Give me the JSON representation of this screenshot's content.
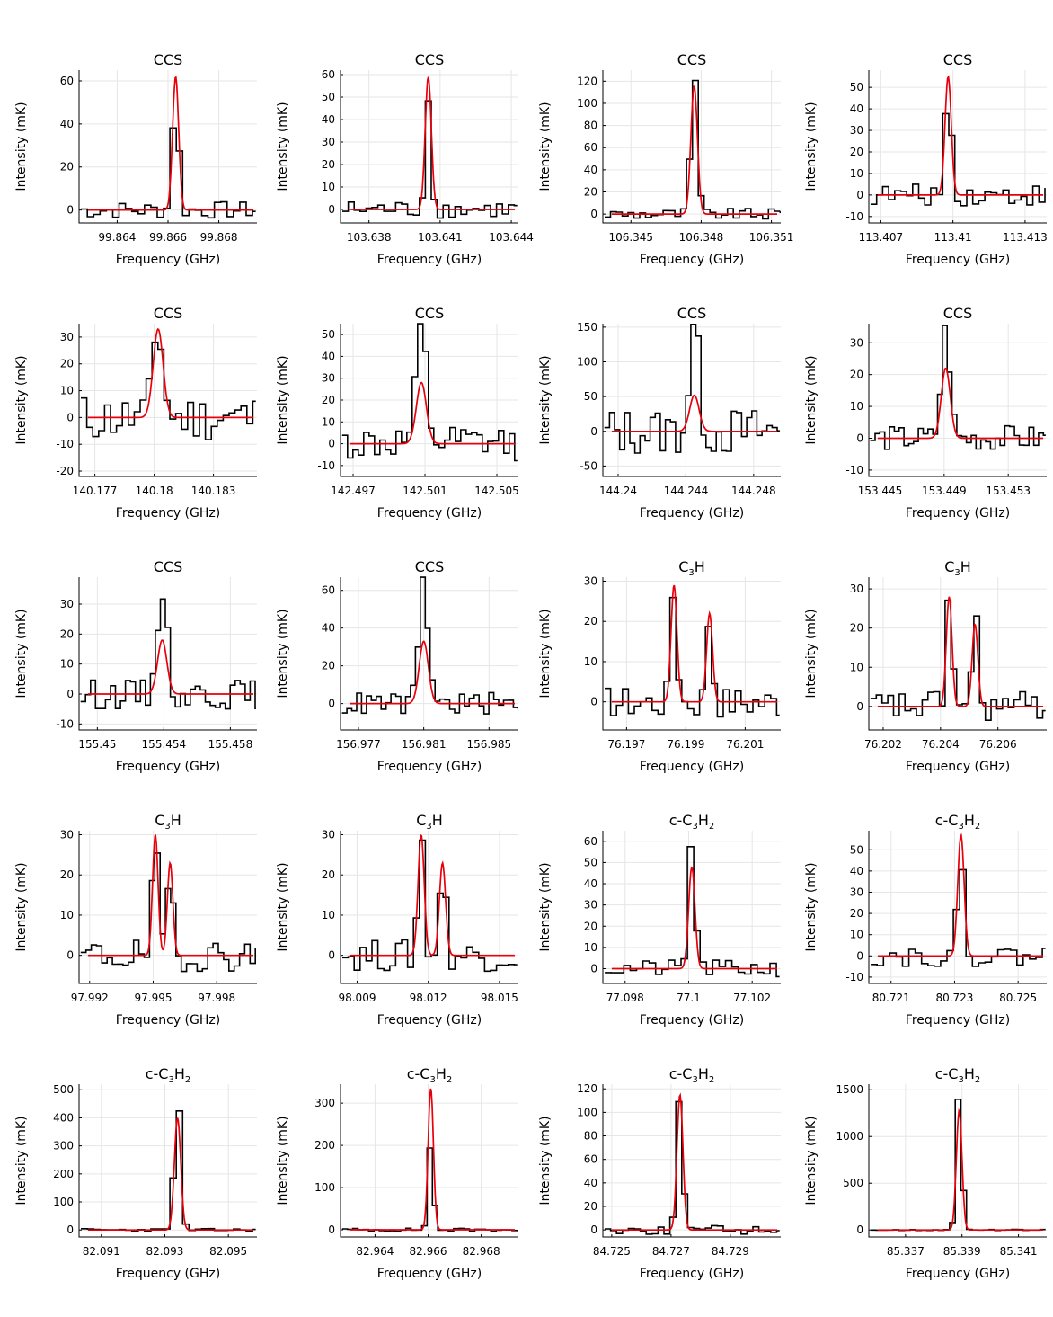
{
  "x_axis_label": "Frequency (GHz)",
  "y_axis_label": "Intensity (mK)",
  "colors": {
    "data": "#000000",
    "fit": "#e8000b",
    "grid": "#e6e6e6"
  },
  "chart_data": [
    {
      "type": "line",
      "title": "CCS",
      "title_sub": [],
      "xlim": [
        99.8625,
        99.8695
      ],
      "ylim": [
        -6,
        65
      ],
      "xticks": [
        99.864,
        99.866,
        99.868
      ],
      "yticks": [
        0,
        20,
        40,
        60
      ],
      "peaks": [
        {
          "center": 99.8663,
          "amp": 62,
          "sigma": 0.00012
        }
      ],
      "observed_peak": 57,
      "noise": 4,
      "channel_width": 0.00025
    },
    {
      "type": "line",
      "title": "CCS",
      "title_sub": [],
      "xlim": [
        103.6368,
        103.6443
      ],
      "ylim": [
        -6,
        62
      ],
      "xticks": [
        103.638,
        103.641,
        103.644
      ],
      "yticks": [
        0,
        10,
        20,
        30,
        40,
        50,
        60
      ],
      "peaks": [
        {
          "center": 103.6405,
          "amp": 59,
          "sigma": 0.00013
        }
      ],
      "observed_peak": 48,
      "noise": 4,
      "channel_width": 0.00025
    },
    {
      "type": "line",
      "title": "CCS",
      "title_sub": [],
      "xlim": [
        106.3438,
        106.3514
      ],
      "ylim": [
        -8,
        130
      ],
      "xticks": [
        106.345,
        106.348,
        106.351
      ],
      "yticks": [
        0,
        20,
        40,
        60,
        80,
        100,
        120
      ],
      "peaks": [
        {
          "center": 106.3477,
          "amp": 116,
          "sigma": 0.00014
        }
      ],
      "observed_peak": 128,
      "noise": 5,
      "channel_width": 0.00025
    },
    {
      "type": "line",
      "title": "CCS",
      "title_sub": [],
      "xlim": [
        113.4065,
        113.4139
      ],
      "ylim": [
        -13,
        58
      ],
      "xticks": [
        113.407,
        113.41,
        113.413
      ],
      "yticks": [
        -10,
        0,
        10,
        20,
        30,
        40,
        50
      ],
      "peaks": [
        {
          "center": 113.4098,
          "amp": 55,
          "sigma": 0.00013
        }
      ],
      "observed_peak": 52,
      "noise": 5,
      "channel_width": 0.00025
    },
    {
      "type": "line",
      "title": "CCS",
      "title_sub": [],
      "xlim": [
        140.1762,
        140.1852
      ],
      "ylim": [
        -22,
        35
      ],
      "xticks": [
        140.177,
        140.18,
        140.183
      ],
      "yticks": [
        -20,
        -10,
        0,
        10,
        20,
        30
      ],
      "peaks": [
        {
          "center": 140.1802,
          "amp": 33,
          "sigma": 0.00025
        }
      ],
      "observed_peak": 34,
      "noise": 9,
      "channel_width": 0.0003
    },
    {
      "type": "line",
      "title": "CCS",
      "title_sub": [],
      "xlim": [
        142.4963,
        142.5062
      ],
      "ylim": [
        -15,
        55
      ],
      "xticks": [
        142.497,
        142.501,
        142.505
      ],
      "yticks": [
        -10,
        0,
        10,
        20,
        30,
        40,
        50
      ],
      "peaks": [
        {
          "center": 142.5008,
          "amp": 28,
          "sigma": 0.00028
        }
      ],
      "observed_peak": 52,
      "noise": 8,
      "channel_width": 0.0003
    },
    {
      "type": "line",
      "title": "CCS",
      "title_sub": [],
      "xlim": [
        144.2391,
        144.2496
      ],
      "ylim": [
        -65,
        155
      ],
      "xticks": [
        144.24,
        144.244,
        144.248
      ],
      "yticks": [
        -50,
        0,
        50,
        100,
        150
      ],
      "peaks": [
        {
          "center": 144.2445,
          "amp": 52,
          "sigma": 0.00028
        }
      ],
      "observed_peak": 150,
      "noise": 35,
      "channel_width": 0.0003
    },
    {
      "type": "line",
      "title": "CCS",
      "title_sub": [],
      "xlim": [
        153.4443,
        153.4554
      ],
      "ylim": [
        -12,
        36
      ],
      "xticks": [
        153.445,
        153.449,
        153.453
      ],
      "yticks": [
        -10,
        0,
        10,
        20,
        30
      ],
      "peaks": [
        {
          "center": 153.4491,
          "amp": 22,
          "sigma": 0.00028
        }
      ],
      "observed_peak": 34,
      "noise": 4,
      "channel_width": 0.0003
    },
    {
      "type": "line",
      "title": "CCS",
      "title_sub": [],
      "xlim": [
        155.4489,
        155.4596
      ],
      "ylim": [
        -12,
        39
      ],
      "xticks": [
        155.45,
        155.454,
        155.458
      ],
      "yticks": [
        -10,
        0,
        10,
        20,
        30
      ],
      "peaks": [
        {
          "center": 155.4539,
          "amp": 18,
          "sigma": 0.00028
        }
      ],
      "observed_peak": 37,
      "noise": 5,
      "channel_width": 0.0003
    },
    {
      "type": "line",
      "title": "CCS",
      "title_sub": [],
      "xlim": [
        156.9759,
        156.9868
      ],
      "ylim": [
        -14,
        67
      ],
      "xticks": [
        156.977,
        156.981,
        156.985
      ],
      "yticks": [
        0,
        20,
        40,
        60
      ],
      "peaks": [
        {
          "center": 156.981,
          "amp": 33,
          "sigma": 0.00028
        }
      ],
      "observed_peak": 64,
      "noise": 6,
      "channel_width": 0.0003
    },
    {
      "type": "line",
      "title": "C",
      "title_sub": [
        "3",
        "H",
        ""
      ],
      "xlim": [
        76.1962,
        76.2022
      ],
      "ylim": [
        -7,
        31
      ],
      "xticks": [
        76.197,
        76.199,
        76.201
      ],
      "yticks": [
        0,
        10,
        20,
        30
      ],
      "peaks": [
        {
          "center": 76.1986,
          "amp": 29,
          "sigma": 0.0001
        },
        {
          "center": 76.1998,
          "amp": 22,
          "sigma": 0.0001
        }
      ],
      "observed_peak": 29,
      "noise": 4,
      "channel_width": 0.0002
    },
    {
      "type": "line",
      "title": "C",
      "title_sub": [
        "3",
        "H",
        ""
      ],
      "xlim": [
        76.2015,
        76.2077
      ],
      "ylim": [
        -6,
        33
      ],
      "xticks": [
        76.202,
        76.204,
        76.206
      ],
      "yticks": [
        0,
        10,
        20,
        30
      ],
      "peaks": [
        {
          "center": 76.2043,
          "amp": 28,
          "sigma": 0.0001
        },
        {
          "center": 76.2052,
          "amp": 21,
          "sigma": 0.0001
        }
      ],
      "observed_peak": 32,
      "noise": 4,
      "channel_width": 0.0002
    },
    {
      "type": "line",
      "title": "C",
      "title_sub": [
        "3",
        "H",
        ""
      ],
      "xlim": [
        97.9915,
        97.9999
      ],
      "ylim": [
        -7,
        31
      ],
      "xticks": [
        97.992,
        97.995,
        97.998
      ],
      "yticks": [
        0,
        10,
        20,
        30
      ],
      "peaks": [
        {
          "center": 97.9951,
          "amp": 30,
          "sigma": 0.00013
        },
        {
          "center": 97.9958,
          "amp": 23,
          "sigma": 0.00013
        }
      ],
      "observed_peak": 30,
      "noise": 4,
      "channel_width": 0.00025
    },
    {
      "type": "line",
      "title": "C",
      "title_sub": [
        "3",
        "H",
        ""
      ],
      "xlim": [
        98.0083,
        98.0158
      ],
      "ylim": [
        -7,
        31
      ],
      "xticks": [
        98.009,
        98.012,
        98.015
      ],
      "yticks": [
        0,
        10,
        20,
        30
      ],
      "peaks": [
        {
          "center": 98.0117,
          "amp": 30,
          "sigma": 0.00013
        },
        {
          "center": 98.0126,
          "amp": 23,
          "sigma": 0.00013
        }
      ],
      "observed_peak": 30,
      "noise": 4,
      "channel_width": 0.00025
    },
    {
      "type": "line",
      "title": "c-C",
      "title_sub": [
        "3",
        "H",
        "2"
      ],
      "xlim": [
        77.0973,
        77.1029
      ],
      "ylim": [
        -7,
        65
      ],
      "xticks": [
        77.098,
        77.1,
        77.102
      ],
      "yticks": [
        0,
        10,
        20,
        30,
        40,
        50,
        60
      ],
      "peaks": [
        {
          "center": 77.1001,
          "amp": 48,
          "sigma": 0.0001
        }
      ],
      "observed_peak": 64,
      "noise": 4,
      "channel_width": 0.0002
    },
    {
      "type": "line",
      "title": "c-C",
      "title_sub": [
        "3",
        "H",
        "2"
      ],
      "xlim": [
        80.7203,
        80.7259
      ],
      "ylim": [
        -13,
        59
      ],
      "xticks": [
        80.721,
        80.723,
        80.725
      ],
      "yticks": [
        -10,
        0,
        10,
        20,
        30,
        40,
        50
      ],
      "peaks": [
        {
          "center": 80.7232,
          "amp": 57,
          "sigma": 0.0001
        }
      ],
      "observed_peak": 45,
      "noise": 5,
      "channel_width": 0.0002
    },
    {
      "type": "line",
      "title": "c-C",
      "title_sub": [
        "3",
        "H",
        "2"
      ],
      "xlim": [
        82.0903,
        82.0959
      ],
      "ylim": [
        -25,
        520
      ],
      "xticks": [
        82.091,
        82.093,
        82.095
      ],
      "yticks": [
        0,
        100,
        200,
        300,
        400,
        500
      ],
      "peaks": [
        {
          "center": 82.0934,
          "amp": 400,
          "sigma": 0.0001
        }
      ],
      "observed_peak": 505,
      "noise": 5,
      "channel_width": 0.0002
    },
    {
      "type": "line",
      "title": "c-C",
      "title_sub": [
        "3",
        "H",
        "2"
      ],
      "xlim": [
        82.9627,
        82.9694
      ],
      "ylim": [
        -17,
        345
      ],
      "xticks": [
        82.964,
        82.966,
        82.968
      ],
      "yticks": [
        0,
        100,
        200,
        300
      ],
      "peaks": [
        {
          "center": 82.9661,
          "amp": 335,
          "sigma": 0.0001
        }
      ],
      "observed_peak": 208,
      "noise": 4,
      "channel_width": 0.0002
    },
    {
      "type": "line",
      "title": "c-C",
      "title_sub": [
        "3",
        "H",
        "2"
      ],
      "xlim": [
        84.7247,
        84.7307
      ],
      "ylim": [
        -6,
        124
      ],
      "xticks": [
        84.725,
        84.727,
        84.729
      ],
      "yticks": [
        0,
        20,
        40,
        60,
        80,
        100,
        120
      ],
      "peaks": [
        {
          "center": 84.7273,
          "amp": 115,
          "sigma": 0.0001
        }
      ],
      "observed_peak": 122,
      "noise": 4,
      "channel_width": 0.0002
    },
    {
      "type": "line",
      "title": "c-C",
      "title_sub": [
        "3",
        "H",
        "2"
      ],
      "xlim": [
        85.3357,
        85.342
      ],
      "ylim": [
        -75,
        1560
      ],
      "xticks": [
        85.337,
        85.339,
        85.341
      ],
      "yticks": [
        0,
        500,
        1000,
        1500
      ],
      "peaks": [
        {
          "center": 85.3389,
          "amp": 1280,
          "sigma": 0.0001
        }
      ],
      "observed_peak": 1520,
      "noise": 6,
      "channel_width": 0.0002
    }
  ]
}
